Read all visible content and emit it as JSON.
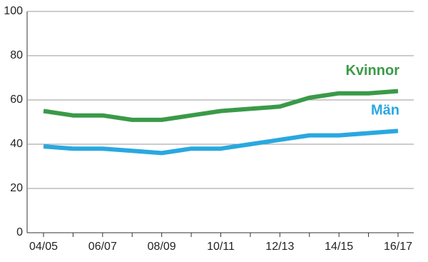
{
  "chart_data": {
    "type": "line",
    "categories": [
      "04/05",
      null,
      "06/07",
      null,
      "08/09",
      null,
      "10/11",
      null,
      "12/13",
      null,
      "14/15",
      null,
      "16/17"
    ],
    "series": [
      {
        "name": "Kvinnor",
        "color": "#3a9a48",
        "values": [
          55,
          53,
          53,
          51,
          51,
          53,
          55,
          56,
          57,
          61,
          63,
          63,
          64
        ]
      },
      {
        "name": "Män",
        "color": "#29a8e0",
        "values": [
          39,
          38,
          38,
          37,
          36,
          38,
          38,
          40,
          42,
          44,
          44,
          45,
          46
        ]
      }
    ],
    "ylim": [
      0,
      100
    ],
    "yticks": [
      0,
      20,
      40,
      60,
      80,
      100
    ],
    "grid": true
  }
}
